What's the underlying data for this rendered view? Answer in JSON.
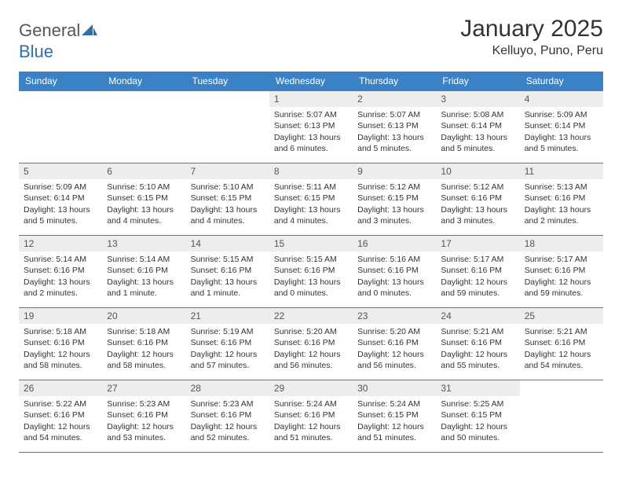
{
  "logo": {
    "textLeft": "General",
    "textRight": "Blue"
  },
  "header": {
    "title": "January 2025",
    "location": "Kelluyo, Puno, Peru"
  },
  "colors": {
    "headerBg": "#3a82c4",
    "headerText": "#ffffff",
    "border": "#3a82c4",
    "dayNumBg": "#ededed",
    "logoBlue": "#2f6fa8"
  },
  "fonts": {
    "title_pt": 30,
    "location_pt": 16,
    "dayHeader_pt": 12,
    "dayNum_pt": 12,
    "body_pt": 10.5
  },
  "dayHeaders": [
    "Sunday",
    "Monday",
    "Tuesday",
    "Wednesday",
    "Thursday",
    "Friday",
    "Saturday"
  ],
  "weeks": [
    [
      {
        "empty": true
      },
      {
        "empty": true
      },
      {
        "empty": true
      },
      {
        "num": "1",
        "sunrise": "5:07 AM",
        "sunset": "6:13 PM",
        "daylight": "13 hours and 6 minutes."
      },
      {
        "num": "2",
        "sunrise": "5:07 AM",
        "sunset": "6:13 PM",
        "daylight": "13 hours and 5 minutes."
      },
      {
        "num": "3",
        "sunrise": "5:08 AM",
        "sunset": "6:14 PM",
        "daylight": "13 hours and 5 minutes."
      },
      {
        "num": "4",
        "sunrise": "5:09 AM",
        "sunset": "6:14 PM",
        "daylight": "13 hours and 5 minutes."
      }
    ],
    [
      {
        "num": "5",
        "sunrise": "5:09 AM",
        "sunset": "6:14 PM",
        "daylight": "13 hours and 5 minutes."
      },
      {
        "num": "6",
        "sunrise": "5:10 AM",
        "sunset": "6:15 PM",
        "daylight": "13 hours and 4 minutes."
      },
      {
        "num": "7",
        "sunrise": "5:10 AM",
        "sunset": "6:15 PM",
        "daylight": "13 hours and 4 minutes."
      },
      {
        "num": "8",
        "sunrise": "5:11 AM",
        "sunset": "6:15 PM",
        "daylight": "13 hours and 4 minutes."
      },
      {
        "num": "9",
        "sunrise": "5:12 AM",
        "sunset": "6:15 PM",
        "daylight": "13 hours and 3 minutes."
      },
      {
        "num": "10",
        "sunrise": "5:12 AM",
        "sunset": "6:16 PM",
        "daylight": "13 hours and 3 minutes."
      },
      {
        "num": "11",
        "sunrise": "5:13 AM",
        "sunset": "6:16 PM",
        "daylight": "13 hours and 2 minutes."
      }
    ],
    [
      {
        "num": "12",
        "sunrise": "5:14 AM",
        "sunset": "6:16 PM",
        "daylight": "13 hours and 2 minutes."
      },
      {
        "num": "13",
        "sunrise": "5:14 AM",
        "sunset": "6:16 PM",
        "daylight": "13 hours and 1 minute."
      },
      {
        "num": "14",
        "sunrise": "5:15 AM",
        "sunset": "6:16 PM",
        "daylight": "13 hours and 1 minute."
      },
      {
        "num": "15",
        "sunrise": "5:15 AM",
        "sunset": "6:16 PM",
        "daylight": "13 hours and 0 minutes."
      },
      {
        "num": "16",
        "sunrise": "5:16 AM",
        "sunset": "6:16 PM",
        "daylight": "13 hours and 0 minutes."
      },
      {
        "num": "17",
        "sunrise": "5:17 AM",
        "sunset": "6:16 PM",
        "daylight": "12 hours and 59 minutes."
      },
      {
        "num": "18",
        "sunrise": "5:17 AM",
        "sunset": "6:16 PM",
        "daylight": "12 hours and 59 minutes."
      }
    ],
    [
      {
        "num": "19",
        "sunrise": "5:18 AM",
        "sunset": "6:16 PM",
        "daylight": "12 hours and 58 minutes."
      },
      {
        "num": "20",
        "sunrise": "5:18 AM",
        "sunset": "6:16 PM",
        "daylight": "12 hours and 58 minutes."
      },
      {
        "num": "21",
        "sunrise": "5:19 AM",
        "sunset": "6:16 PM",
        "daylight": "12 hours and 57 minutes."
      },
      {
        "num": "22",
        "sunrise": "5:20 AM",
        "sunset": "6:16 PM",
        "daylight": "12 hours and 56 minutes."
      },
      {
        "num": "23",
        "sunrise": "5:20 AM",
        "sunset": "6:16 PM",
        "daylight": "12 hours and 56 minutes."
      },
      {
        "num": "24",
        "sunrise": "5:21 AM",
        "sunset": "6:16 PM",
        "daylight": "12 hours and 55 minutes."
      },
      {
        "num": "25",
        "sunrise": "5:21 AM",
        "sunset": "6:16 PM",
        "daylight": "12 hours and 54 minutes."
      }
    ],
    [
      {
        "num": "26",
        "sunrise": "5:22 AM",
        "sunset": "6:16 PM",
        "daylight": "12 hours and 54 minutes."
      },
      {
        "num": "27",
        "sunrise": "5:23 AM",
        "sunset": "6:16 PM",
        "daylight": "12 hours and 53 minutes."
      },
      {
        "num": "28",
        "sunrise": "5:23 AM",
        "sunset": "6:16 PM",
        "daylight": "12 hours and 52 minutes."
      },
      {
        "num": "29",
        "sunrise": "5:24 AM",
        "sunset": "6:16 PM",
        "daylight": "12 hours and 51 minutes."
      },
      {
        "num": "30",
        "sunrise": "5:24 AM",
        "sunset": "6:15 PM",
        "daylight": "12 hours and 51 minutes."
      },
      {
        "num": "31",
        "sunrise": "5:25 AM",
        "sunset": "6:15 PM",
        "daylight": "12 hours and 50 minutes."
      },
      {
        "empty": true
      }
    ]
  ],
  "labels": {
    "sunrise": "Sunrise: ",
    "sunset": "Sunset: ",
    "daylight": "Daylight: "
  }
}
